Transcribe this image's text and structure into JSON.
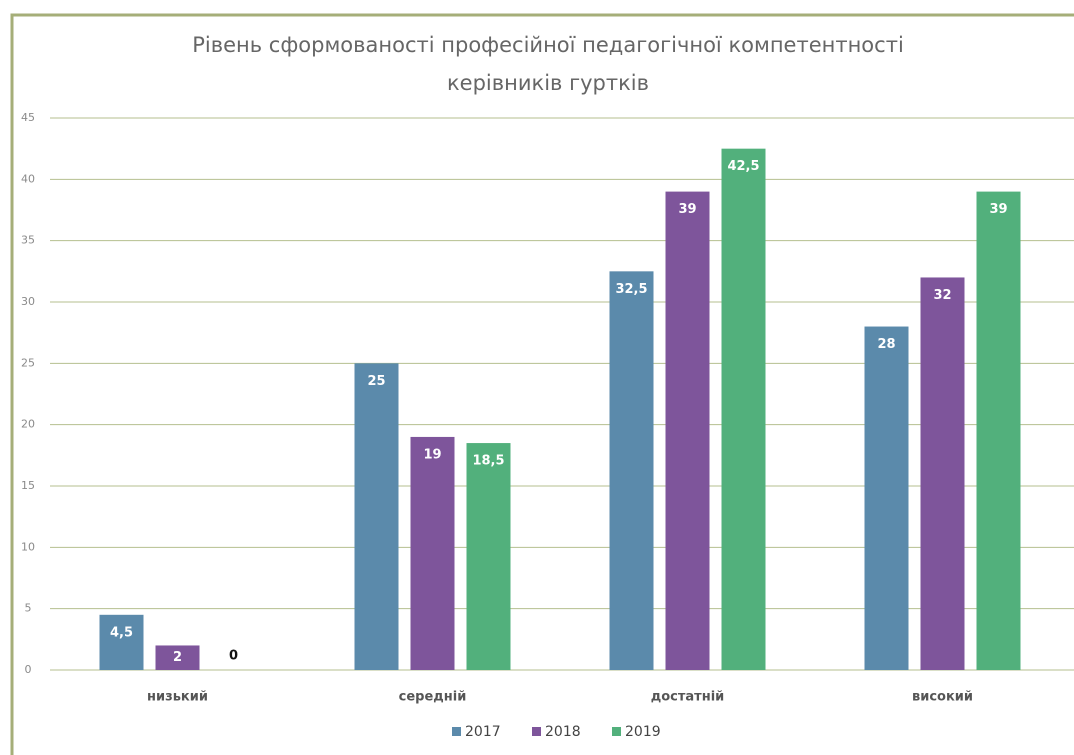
{
  "chart_data": {
    "type": "bar",
    "title": [
      "Рівень сформованості професійної педагогічної компетентності",
      "керівників гуртків"
    ],
    "categories": [
      "низький",
      "середній",
      "достатній",
      "високий"
    ],
    "series": [
      {
        "name": "2017",
        "color": "#5b8aab",
        "values": [
          4.5,
          25,
          32.5,
          28
        ],
        "value_labels": [
          "4,5",
          "25",
          "32,5",
          "28"
        ]
      },
      {
        "name": "2018",
        "color": "#7e559b",
        "values": [
          2,
          19,
          39,
          32
        ],
        "value_labels": [
          "2",
          "19",
          "39",
          "32"
        ]
      },
      {
        "name": "2019",
        "color": "#52b07c",
        "values": [
          0,
          18.5,
          42.5,
          39
        ],
        "value_labels": [
          "0",
          "18,5",
          "42,5",
          "39"
        ]
      }
    ],
    "ylim": [
      0,
      45
    ],
    "yticks": [
      0,
      5,
      10,
      15,
      20,
      25,
      30,
      35,
      40,
      45
    ],
    "grid": true,
    "legend": "bottom"
  }
}
